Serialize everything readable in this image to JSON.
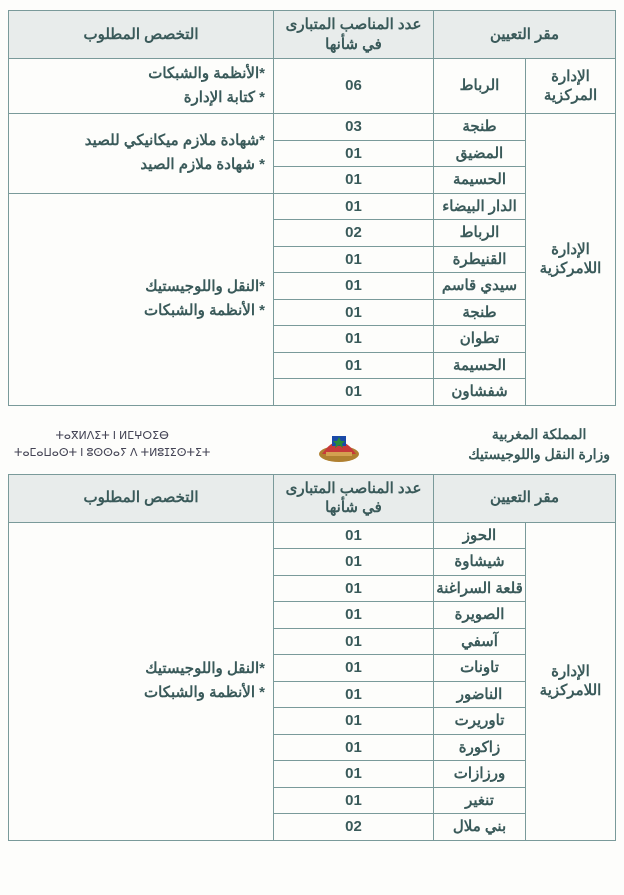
{
  "headers": {
    "location": "مقر التعيين",
    "count": "عدد المناصب المتبارى في شأنها",
    "spec": "التخصص المطلوب"
  },
  "table1": {
    "admin_central": "الإدارة المركزية",
    "admin_decentral": "الإدارة اللامركزية",
    "row_central": {
      "loc": "الرباط",
      "count": "06",
      "spec": "*الأنظمة والشبكات\n* كتابة الإدارة"
    },
    "group_a": {
      "spec": "*شهادة ملازم ميكانيكي للصيد\n* شهادة ملازم الصيد",
      "rows": [
        {
          "loc": "طنجة",
          "count": "03"
        },
        {
          "loc": "المضيق",
          "count": "01"
        },
        {
          "loc": "الحسيمة",
          "count": "01"
        }
      ]
    },
    "group_b": {
      "spec": "*النقل واللوجيستيك\n* الأنظمة والشبكات",
      "rows": [
        {
          "loc": "الدار البيضاء",
          "count": "01"
        },
        {
          "loc": "الرباط",
          "count": "02"
        },
        {
          "loc": "القنيطرة",
          "count": "01"
        },
        {
          "loc": "سيدي قاسم",
          "count": "01"
        },
        {
          "loc": "طنجة",
          "count": "01"
        },
        {
          "loc": "تطوان",
          "count": "01"
        },
        {
          "loc": "الحسيمة",
          "count": "01"
        },
        {
          "loc": "شفشاون",
          "count": "01"
        }
      ]
    }
  },
  "band": {
    "country": "المملكة المغربية",
    "ministry": "وزارة النقل واللوجيستيك",
    "tifinagh1": "ⵜⴰⴳⵍⴷⵉⵜ ⵏ ⵍⵎⵖⵔⵉⴱ",
    "tifinagh2": "ⵜⴰⵎⴰⵡⴰⵙⵜ ⵏ ⵓⵙⵙⴰⵢ ⴷ ⵜⵍⵓⵊⵉⵙⵜⵉⵜ"
  },
  "table2": {
    "admin_decentral": "الإدارة اللامركزية",
    "spec": "*النقل واللوجيستيك\n* الأنظمة والشبكات",
    "rows": [
      {
        "loc": "الحوز",
        "count": "01"
      },
      {
        "loc": "شيشاوة",
        "count": "01"
      },
      {
        "loc": "قلعة السراغنة",
        "count": "01"
      },
      {
        "loc": "الصويرة",
        "count": "01"
      },
      {
        "loc": "آسفي",
        "count": "01"
      },
      {
        "loc": "تاونات",
        "count": "01"
      },
      {
        "loc": "الناضور",
        "count": "01"
      },
      {
        "loc": "تاوريرت",
        "count": "01"
      },
      {
        "loc": "زاكورة",
        "count": "01"
      },
      {
        "loc": "ورزازات",
        "count": "01"
      },
      {
        "loc": "تنغير",
        "count": "01"
      },
      {
        "loc": "بني ملال",
        "count": "02"
      }
    ]
  }
}
